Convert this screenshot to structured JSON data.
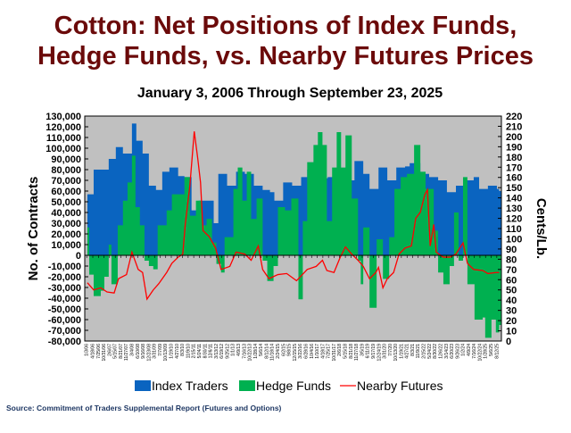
{
  "chart_data": {
    "type": "area",
    "title_line1": "Cotton:  Net Positions of Index Funds,",
    "title_line2": "Hedge Funds, vs. Nearby Futures Prices",
    "subtitle": "January 3, 2006 Through September 23, 2025",
    "ylabel": "No. of Contracts",
    "y2label": "Cents/Lb.",
    "ylim": [
      -80000,
      130000
    ],
    "y2lim": [
      0,
      220
    ],
    "xlim": [
      2006.0,
      2025.75
    ],
    "yticks": [
      "130,000",
      "120,000",
      "110,000",
      "100,000",
      "90,000",
      "80,000",
      "70,000",
      "60,000",
      "50,000",
      "40,000",
      "30,000",
      "20,000",
      "10,000",
      "0",
      "-10,000",
      "-20,000",
      "-30,000",
      "-40,000",
      "-50,000",
      "-60,000",
      "-70,000",
      "-80,000"
    ],
    "y2ticks": [
      "220",
      "210",
      "200",
      "190",
      "180",
      "170",
      "160",
      "150",
      "140",
      "130",
      "120",
      "110",
      "100",
      "90",
      "80",
      "70",
      "60",
      "50",
      "40",
      "30",
      "20",
      "10",
      "0"
    ],
    "xticks": [
      "1/3/06",
      "4/18/06",
      "7/25/06",
      "10/31/06",
      "2/6/07",
      "5/15/07",
      "8/21/07",
      "11/27/07",
      "3/4/08",
      "6/10/08",
      "9/16/08",
      "12/23/08",
      "3/31/09",
      "7/7/09",
      "10/13/09",
      "1/19/10",
      "4/27/10",
      "8/3/10",
      "11/9/10",
      "2/15/11",
      "5/24/11",
      "8/30/11",
      "12/6/11",
      "3/13/12",
      "6/19/12",
      "9/25/12",
      "1/1/13",
      "4/9/13",
      "7/16/13",
      "10/22/13",
      "1/28/14",
      "5/6/14",
      "8/12/14",
      "11/18/14",
      "2/24/15",
      "6/2/15",
      "9/8/15",
      "12/15/15",
      "3/22/16",
      "6/28/16",
      "10/4/16",
      "1/10/17",
      "4/18/17",
      "7/25/17",
      "10/31/17",
      "2/6/18",
      "5/15/18",
      "8/21/18",
      "11/27/18",
      "3/5/19",
      "6/11/19",
      "9/17/19",
      "12/24/19",
      "3/31/20",
      "7/7/20",
      "10/13/20",
      "1/19/21",
      "4/27/21",
      "8/3/21",
      "11/9/21",
      "2/15/22",
      "5/24/22",
      "8/30/22",
      "12/6/22",
      "3/14/23",
      "6/20/23",
      "9/26/23",
      "1/2/24",
      "4/9/24",
      "7/16/24",
      "10/22/24",
      "1/28/25",
      "5/6/25",
      "8/12/25"
    ],
    "grid": false,
    "legend_position": "bottom",
    "colors": {
      "index": "#0a64c0",
      "hedge": "#00b050",
      "futures": "#ff0000",
      "plot_bg": "#c0c0c0"
    },
    "series": [
      {
        "name": "Index Traders",
        "axis": "left",
        "unit": "thousand contracts",
        "points": [
          [
            2006.04,
            57
          ],
          [
            2006.34,
            80
          ],
          [
            2007.06,
            90
          ],
          [
            2007.4,
            101
          ],
          [
            2007.74,
            95
          ],
          [
            2008.17,
            123
          ],
          [
            2008.38,
            107
          ],
          [
            2008.68,
            95
          ],
          [
            2008.98,
            65
          ],
          [
            2009.32,
            61
          ],
          [
            2009.62,
            78
          ],
          [
            2009.96,
            82
          ],
          [
            2010.38,
            74
          ],
          [
            2010.68,
            73
          ],
          [
            2011.02,
            42
          ],
          [
            2011.36,
            51
          ],
          [
            2011.79,
            51
          ],
          [
            2012.08,
            30
          ],
          [
            2012.3,
            76
          ],
          [
            2012.72,
            65
          ],
          [
            2013.15,
            78
          ],
          [
            2013.57,
            76
          ],
          [
            2014.0,
            65
          ],
          [
            2014.42,
            61
          ],
          [
            2014.77,
            59
          ],
          [
            2014.98,
            51
          ],
          [
            2015.4,
            68
          ],
          [
            2015.83,
            65
          ],
          [
            2016.26,
            73
          ],
          [
            2016.55,
            80
          ],
          [
            2016.98,
            72
          ],
          [
            2017.53,
            73
          ],
          [
            2017.96,
            75
          ],
          [
            2018.55,
            70
          ],
          [
            2018.81,
            88
          ],
          [
            2019.23,
            76
          ],
          [
            2019.53,
            62
          ],
          [
            2019.96,
            82
          ],
          [
            2020.38,
            70
          ],
          [
            2020.81,
            82
          ],
          [
            2021.23,
            83
          ],
          [
            2021.45,
            86
          ],
          [
            2021.96,
            76
          ],
          [
            2022.38,
            73
          ],
          [
            2022.81,
            70
          ],
          [
            2023.23,
            59
          ],
          [
            2023.66,
            65
          ],
          [
            2024.08,
            70
          ],
          [
            2024.51,
            73
          ],
          [
            2024.77,
            62
          ],
          [
            2025.19,
            65
          ],
          [
            2025.62,
            62
          ],
          [
            2025.73,
            60
          ]
        ]
      },
      {
        "name": "Hedge Funds",
        "axis": "left",
        "unit": "thousand contracts",
        "points": [
          [
            2006.04,
            26
          ],
          [
            2006.13,
            -18
          ],
          [
            2006.34,
            -38
          ],
          [
            2006.68,
            -33
          ],
          [
            2006.85,
            -20
          ],
          [
            2007.06,
            10
          ],
          [
            2007.19,
            -27
          ],
          [
            2007.49,
            28
          ],
          [
            2007.74,
            51
          ],
          [
            2007.96,
            68
          ],
          [
            2008.17,
            93
          ],
          [
            2008.34,
            45
          ],
          [
            2008.55,
            28
          ],
          [
            2008.77,
            -5
          ],
          [
            2008.98,
            -10
          ],
          [
            2009.19,
            -13
          ],
          [
            2009.4,
            28
          ],
          [
            2009.83,
            42
          ],
          [
            2010.08,
            57
          ],
          [
            2010.38,
            57
          ],
          [
            2010.68,
            73
          ],
          [
            2010.94,
            37
          ],
          [
            2011.23,
            51
          ],
          [
            2011.53,
            28
          ],
          [
            2011.74,
            34
          ],
          [
            2012.0,
            12
          ],
          [
            2012.21,
            -8
          ],
          [
            2012.43,
            -16
          ],
          [
            2012.6,
            17
          ],
          [
            2013.02,
            62
          ],
          [
            2013.23,
            82
          ],
          [
            2013.45,
            51
          ],
          [
            2013.66,
            78
          ],
          [
            2013.87,
            34
          ],
          [
            2014.13,
            53
          ],
          [
            2014.42,
            -5
          ],
          [
            2014.64,
            -24
          ],
          [
            2014.94,
            -10
          ],
          [
            2015.15,
            45
          ],
          [
            2015.49,
            42
          ],
          [
            2015.79,
            53
          ],
          [
            2016.13,
            -41
          ],
          [
            2016.34,
            32
          ],
          [
            2016.55,
            87
          ],
          [
            2016.85,
            103
          ],
          [
            2017.06,
            115
          ],
          [
            2017.28,
            103
          ],
          [
            2017.49,
            32
          ],
          [
            2017.74,
            82
          ],
          [
            2017.96,
            115
          ],
          [
            2018.17,
            82
          ],
          [
            2018.38,
            112
          ],
          [
            2018.68,
            53
          ],
          [
            2018.98,
            -5
          ],
          [
            2019.11,
            -27
          ],
          [
            2019.23,
            26
          ],
          [
            2019.53,
            -49
          ],
          [
            2019.87,
            15
          ],
          [
            2020.17,
            -22
          ],
          [
            2020.47,
            17
          ],
          [
            2020.72,
            62
          ],
          [
            2021.02,
            73
          ],
          [
            2021.32,
            76
          ],
          [
            2021.66,
            103
          ],
          [
            2021.96,
            78
          ],
          [
            2022.21,
            62
          ],
          [
            2022.6,
            23
          ],
          [
            2022.81,
            -16
          ],
          [
            2023.06,
            -27
          ],
          [
            2023.36,
            -10
          ],
          [
            2023.57,
            40
          ],
          [
            2023.79,
            -5
          ],
          [
            2024.0,
            73
          ],
          [
            2024.21,
            -27
          ],
          [
            2024.55,
            -60
          ],
          [
            2024.94,
            -58
          ],
          [
            2025.06,
            -77
          ],
          [
            2025.36,
            -60
          ],
          [
            2025.57,
            -72
          ],
          [
            2025.73,
            -65
          ]
        ]
      },
      {
        "name": "Nearby Futures",
        "axis": "right",
        "unit": "cents/lb",
        "points": [
          [
            2006.04,
            57
          ],
          [
            2006.34,
            50
          ],
          [
            2006.68,
            52
          ],
          [
            2006.98,
            48
          ],
          [
            2007.32,
            47
          ],
          [
            2007.53,
            61
          ],
          [
            2007.91,
            65
          ],
          [
            2008.17,
            87
          ],
          [
            2008.47,
            70
          ],
          [
            2008.68,
            67
          ],
          [
            2008.89,
            41
          ],
          [
            2009.19,
            50
          ],
          [
            2009.45,
            56
          ],
          [
            2009.83,
            67
          ],
          [
            2010.08,
            76
          ],
          [
            2010.38,
            82
          ],
          [
            2010.6,
            85
          ],
          [
            2010.72,
            114
          ],
          [
            2010.94,
            152
          ],
          [
            2011.15,
            205
          ],
          [
            2011.32,
            178
          ],
          [
            2011.45,
            155
          ],
          [
            2011.57,
            108
          ],
          [
            2011.87,
            102
          ],
          [
            2012.17,
            91
          ],
          [
            2012.43,
            70
          ],
          [
            2012.85,
            73
          ],
          [
            2013.15,
            87
          ],
          [
            2013.57,
            85
          ],
          [
            2013.87,
            79
          ],
          [
            2014.21,
            93
          ],
          [
            2014.42,
            70
          ],
          [
            2014.72,
            61
          ],
          [
            2015.15,
            65
          ],
          [
            2015.57,
            66
          ],
          [
            2016.04,
            59
          ],
          [
            2016.55,
            70
          ],
          [
            2016.98,
            73
          ],
          [
            2017.28,
            79
          ],
          [
            2017.49,
            69
          ],
          [
            2017.83,
            67
          ],
          [
            2018.13,
            82
          ],
          [
            2018.38,
            92
          ],
          [
            2018.68,
            85
          ],
          [
            2018.98,
            79
          ],
          [
            2019.23,
            73
          ],
          [
            2019.53,
            61
          ],
          [
            2019.83,
            67
          ],
          [
            2019.96,
            72
          ],
          [
            2020.17,
            52
          ],
          [
            2020.38,
            61
          ],
          [
            2020.68,
            67
          ],
          [
            2020.94,
            85
          ],
          [
            2021.23,
            91
          ],
          [
            2021.53,
            93
          ],
          [
            2021.74,
            120
          ],
          [
            2021.96,
            126
          ],
          [
            2022.17,
            143
          ],
          [
            2022.3,
            148
          ],
          [
            2022.43,
            93
          ],
          [
            2022.6,
            114
          ],
          [
            2022.72,
            87
          ],
          [
            2023.06,
            82
          ],
          [
            2023.36,
            82
          ],
          [
            2023.66,
            85
          ],
          [
            2024.0,
            96
          ],
          [
            2024.21,
            76
          ],
          [
            2024.51,
            70
          ],
          [
            2024.94,
            69
          ],
          [
            2025.19,
            66
          ],
          [
            2025.57,
            67
          ],
          [
            2025.73,
            67
          ]
        ]
      }
    ]
  },
  "legend": {
    "index": "Index Traders",
    "hedge": "Hedge Funds",
    "futures": "Nearby Futures"
  },
  "source": "Source: Commitment of Traders Supplemental Report (Futures and Options)"
}
